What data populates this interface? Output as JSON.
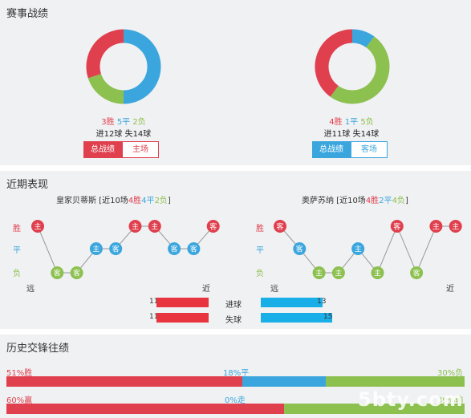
{
  "colors": {
    "win": "#e0404e",
    "draw": "#3ba6de",
    "loss": "#8cc04f",
    "loss_bar": "#e8343f",
    "goal_bar": "#18aee8"
  },
  "section1": {
    "title": "赛事战绩",
    "left": {
      "wins": 3,
      "draws": 5,
      "losses": 2,
      "wins_text": "3胜",
      "draws_text": "5平",
      "losses_text": "2负",
      "goals_text": "进12球 失14球",
      "tab_active": "总战绩",
      "tab_inactive": "主场"
    },
    "right": {
      "wins": 4,
      "draws": 1,
      "losses": 5,
      "wins_text": "4胜",
      "draws_text": "1平",
      "losses_text": "5负",
      "goals_text": "进11球 失14球",
      "tab_active": "总战绩",
      "tab_inactive": "客场"
    }
  },
  "section2": {
    "title": "近期表现",
    "left": {
      "team": "皇家贝蒂斯",
      "prefix": " [近10场",
      "w_text": "4胜",
      "d_text": "4平",
      "l_text": "2负",
      "suffix": "]",
      "results": [
        "W",
        "L",
        "L",
        "D",
        "D",
        "W",
        "W",
        "D",
        "D",
        "W"
      ],
      "venues": [
        "主",
        "客",
        "客",
        "主",
        "客",
        "主",
        "主",
        "客",
        "客",
        "客"
      ]
    },
    "right": {
      "team": "奥萨苏纳",
      "prefix": " [近10场",
      "w_text": "4胜",
      "d_text": "2平",
      "l_text": "4负",
      "suffix": "]",
      "results": [
        "W",
        "D",
        "L",
        "L",
        "D",
        "L",
        "W",
        "L",
        "W",
        "W"
      ],
      "venues": [
        "客",
        "客",
        "主",
        "主",
        "主",
        "主",
        "客",
        "客",
        "主",
        "主"
      ]
    },
    "row_labels": {
      "win": "胜",
      "draw": "平",
      "loss": "负"
    },
    "axis": {
      "far": "远",
      "near": "近"
    },
    "bars": [
      {
        "label": "进球",
        "left": 11,
        "right": 13
      },
      {
        "label": "失球",
        "left": 11,
        "right": 15
      }
    ]
  },
  "section3": {
    "title": "历史交锋往绩",
    "row1": {
      "win_text": "51%胜",
      "draw_text": "18%平",
      "loss_text": "30%负",
      "win": 51,
      "draw": 18,
      "loss": 30
    },
    "row2": {
      "win_text": "60%赢",
      "draw_text": "0%走",
      "loss_text": "39%输",
      "win": 60,
      "draw": 0,
      "loss": 39
    }
  },
  "watermark": "5bty.com"
}
